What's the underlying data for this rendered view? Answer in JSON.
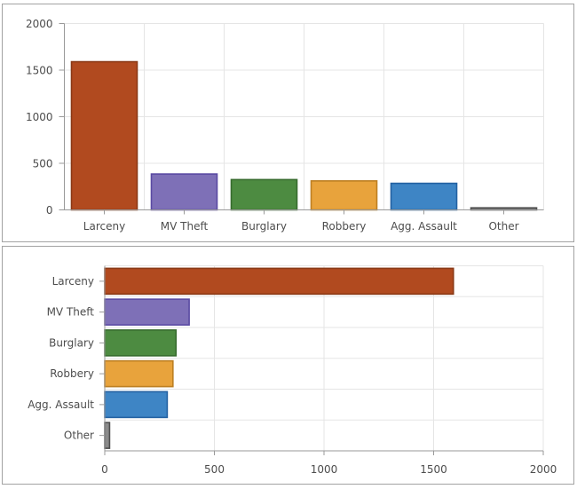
{
  "style": {
    "panel_border_color": "#a2a2a2",
    "axis_color": "#999999",
    "grid_color": "#e5e5e5",
    "label_color": "#4d4d4d",
    "background": "#ffffff"
  },
  "chart_data": [
    {
      "type": "bar",
      "orientation": "vertical",
      "title": "",
      "xlabel": "",
      "ylabel": "",
      "categories": [
        "Larceny",
        "MV Theft",
        "Burglary",
        "Robbery",
        "Agg. Assault",
        "Other"
      ],
      "values": [
        1590,
        385,
        325,
        311,
        285,
        22
      ],
      "value_axis": {
        "min": 0,
        "max": 2000,
        "tick_interval": 500,
        "tick_labels": [
          "0",
          "500",
          "1000",
          "1500",
          "2000"
        ]
      },
      "grid": true,
      "legend": false,
      "bar_colors": [
        {
          "fill": "#b14a1f",
          "stroke": "#8a3915"
        },
        {
          "fill": "#7e70b7",
          "stroke": "#5a4aa3"
        },
        {
          "fill": "#4d8b41",
          "stroke": "#376c2e"
        },
        {
          "fill": "#e8a33c",
          "stroke": "#bd7f22"
        },
        {
          "fill": "#3e85c5",
          "stroke": "#2361a2"
        },
        {
          "fill": "#8a8a8a",
          "stroke": "#4f4f4f"
        }
      ]
    },
    {
      "type": "bar",
      "orientation": "horizontal",
      "title": "",
      "xlabel": "",
      "ylabel": "",
      "categories": [
        "Larceny",
        "MV Theft",
        "Burglary",
        "Robbery",
        "Agg. Assault",
        "Other"
      ],
      "values": [
        1590,
        385,
        325,
        311,
        285,
        22
      ],
      "value_axis": {
        "min": 0,
        "max": 2000,
        "tick_interval": 500,
        "tick_labels": [
          "0",
          "500",
          "1000",
          "1500",
          "2000"
        ]
      },
      "grid": true,
      "legend": false,
      "bar_colors": [
        {
          "fill": "#b14a1f",
          "stroke": "#8a3915"
        },
        {
          "fill": "#7e70b7",
          "stroke": "#5a4aa3"
        },
        {
          "fill": "#4d8b41",
          "stroke": "#376c2e"
        },
        {
          "fill": "#e8a33c",
          "stroke": "#bd7f22"
        },
        {
          "fill": "#3e85c5",
          "stroke": "#2361a2"
        },
        {
          "fill": "#8a8a8a",
          "stroke": "#4f4f4f"
        }
      ]
    }
  ]
}
